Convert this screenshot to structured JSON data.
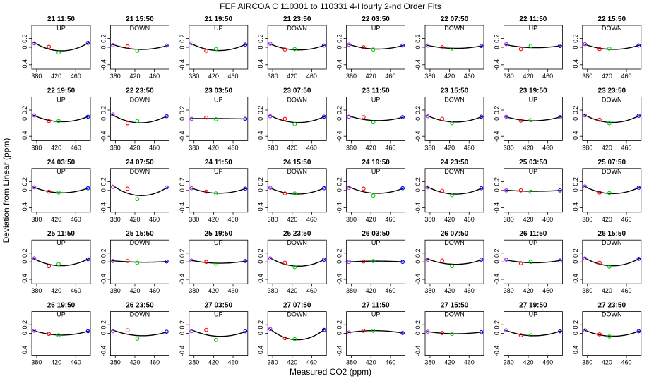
{
  "figure": {
    "title": "FEF   AIRCOA C   110301 to 110331   4-Hourly 2-nd Order Fits",
    "xlabel": "Measured CO2 (ppm)",
    "ylabel": "Deviation from Linear (ppm)"
  },
  "chart_data": {
    "type": "scatter",
    "layout": "small-multiples grid, 5 rows x 8 columns",
    "xlim": [
      370,
      490
    ],
    "ylim": [
      -0.5,
      0.5
    ],
    "xticks": [
      380,
      420,
      460
    ],
    "yticks": [
      -0.4,
      0,
      0.2
    ],
    "x_standards": [
      375,
      405,
      425,
      485
    ],
    "point_colors": [
      "#9b30ff",
      "#ff0000",
      "#00cc00",
      "#0000ff"
    ],
    "fit_line_color": "#000000",
    "panels": [
      {
        "time": "21 11:50",
        "direction": "UP",
        "y": [
          0.09,
          0.01,
          -0.12,
          0.1
        ]
      },
      {
        "time": "21 15:50",
        "direction": "DOWN",
        "y": [
          0.05,
          0.02,
          -0.08,
          0.04
        ]
      },
      {
        "time": "21 19:50",
        "direction": "UP",
        "y": [
          0.09,
          -0.08,
          -0.04,
          0.06
        ]
      },
      {
        "time": "21 23:50",
        "direction": "DOWN",
        "y": [
          0.08,
          -0.05,
          -0.04,
          0.04
        ]
      },
      {
        "time": "22 03:50",
        "direction": "UP",
        "y": [
          0.06,
          0.0,
          -0.05,
          0.04
        ]
      },
      {
        "time": "22 07:50",
        "direction": "DOWN",
        "y": [
          0.04,
          0.0,
          -0.03,
          0.03
        ]
      },
      {
        "time": "22 11:50",
        "direction": "UP",
        "y": [
          0.07,
          -0.04,
          0.03,
          0.03
        ]
      },
      {
        "time": "22 15:50",
        "direction": "DOWN",
        "y": [
          0.07,
          -0.04,
          -0.03,
          0.04
        ]
      },
      {
        "time": "22 19:50",
        "direction": "UP",
        "y": [
          0.08,
          -0.05,
          -0.05,
          0.05
        ]
      },
      {
        "time": "22 23:50",
        "direction": "DOWN",
        "y": [
          0.1,
          -0.1,
          -0.05,
          0.06
        ]
      },
      {
        "time": "23 03:50",
        "direction": "UP",
        "y": [
          0.0,
          0.03,
          -0.01,
          0.0
        ]
      },
      {
        "time": "23 07:50",
        "direction": "DOWN",
        "y": [
          0.06,
          0.0,
          -0.12,
          0.05
        ]
      },
      {
        "time": "23 11:50",
        "direction": "UP",
        "y": [
          0.05,
          0.04,
          -0.08,
          0.04
        ]
      },
      {
        "time": "23 15:50",
        "direction": "DOWN",
        "y": [
          0.06,
          0.0,
          -0.1,
          0.05
        ]
      },
      {
        "time": "23 19:50",
        "direction": "UP",
        "y": [
          0.05,
          -0.04,
          -0.03,
          0.04
        ]
      },
      {
        "time": "23 23:50",
        "direction": "DOWN",
        "y": [
          0.08,
          -0.02,
          -0.1,
          0.07
        ]
      },
      {
        "time": "24 03:50",
        "direction": "UP",
        "y": [
          0.07,
          -0.03,
          -0.05,
          0.05
        ]
      },
      {
        "time": "24 07:50",
        "direction": "DOWN",
        "y": [
          0.08,
          0.04,
          -0.2,
          0.07
        ]
      },
      {
        "time": "24 11:50",
        "direction": "UP",
        "y": [
          0.05,
          -0.03,
          -0.07,
          0.04
        ]
      },
      {
        "time": "24 15:50",
        "direction": "DOWN",
        "y": [
          0.06,
          -0.07,
          -0.07,
          0.05
        ]
      },
      {
        "time": "24 19:50",
        "direction": "UP",
        "y": [
          0.06,
          0.04,
          -0.12,
          0.05
        ]
      },
      {
        "time": "24 23:50",
        "direction": "DOWN",
        "y": [
          0.07,
          -0.01,
          -0.11,
          0.05
        ]
      },
      {
        "time": "25 03:50",
        "direction": "UP",
        "y": [
          0.0,
          0.0,
          -0.03,
          0.0
        ]
      },
      {
        "time": "25 07:50",
        "direction": "DOWN",
        "y": [
          0.09,
          -0.05,
          -0.06,
          0.06
        ]
      },
      {
        "time": "25 11:50",
        "direction": "UP",
        "y": [
          0.08,
          -0.1,
          -0.05,
          0.06
        ]
      },
      {
        "time": "25 15:50",
        "direction": "DOWN",
        "y": [
          0.02,
          0.02,
          -0.02,
          0.01
        ]
      },
      {
        "time": "25 19:50",
        "direction": "UP",
        "y": [
          0.03,
          0.0,
          -0.04,
          0.02
        ]
      },
      {
        "time": "25 23:50",
        "direction": "DOWN",
        "y": [
          0.08,
          -0.02,
          -0.12,
          0.05
        ]
      },
      {
        "time": "26 03:50",
        "direction": "UP",
        "y": [
          0.0,
          0.01,
          0.02,
          0.0
        ]
      },
      {
        "time": "26 07:50",
        "direction": "DOWN",
        "y": [
          0.05,
          0.03,
          -0.1,
          0.05
        ]
      },
      {
        "time": "26 11:50",
        "direction": "UP",
        "y": [
          0.05,
          -0.03,
          0.0,
          0.03
        ]
      },
      {
        "time": "26 15:50",
        "direction": "DOWN",
        "y": [
          0.08,
          -0.02,
          -0.11,
          0.07
        ]
      },
      {
        "time": "26 19:50",
        "direction": "UP",
        "y": [
          0.06,
          -0.01,
          -0.04,
          0.05
        ]
      },
      {
        "time": "26 23:50",
        "direction": "DOWN",
        "y": [
          0.05,
          0.07,
          -0.12,
          0.04
        ]
      },
      {
        "time": "27 03:50",
        "direction": "UP",
        "y": [
          0.05,
          0.08,
          -0.15,
          0.05
        ]
      },
      {
        "time": "27 07:50",
        "direction": "DOWN",
        "y": [
          0.1,
          -0.11,
          -0.13,
          0.08
        ]
      },
      {
        "time": "27 11:50",
        "direction": "UP",
        "y": [
          0.02,
          0.06,
          0.06,
          0.01
        ]
      },
      {
        "time": "27 15:50",
        "direction": "DOWN",
        "y": [
          0.04,
          0.01,
          -0.01,
          0.03
        ]
      },
      {
        "time": "27 19:50",
        "direction": "UP",
        "y": [
          0.07,
          -0.04,
          -0.04,
          0.05
        ]
      },
      {
        "time": "27 23:50",
        "direction": "DOWN",
        "y": [
          0.07,
          -0.02,
          -0.07,
          0.05
        ]
      }
    ]
  }
}
